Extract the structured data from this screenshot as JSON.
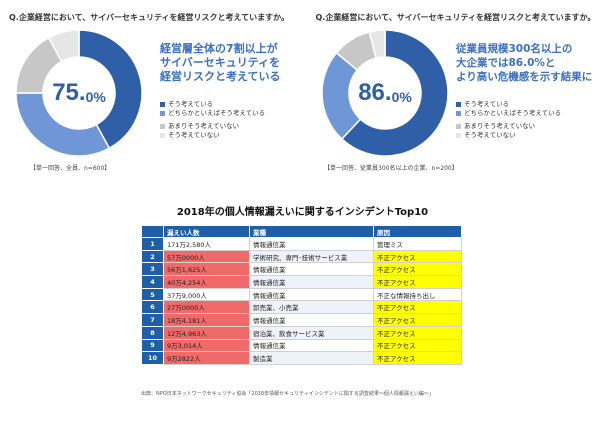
{
  "colors": {
    "primary": "#2f5fa6",
    "secondary": "#6f96d6",
    "tertiary": "#c7c7c7",
    "quaternary": "#e6e6e6",
    "table_header": "#1f5fa8",
    "highlight_red": "#f06a6a",
    "highlight_yellow": "#ffff00"
  },
  "chart_data": [
    {
      "type": "pie",
      "title": "Q.企業経営において、サイバーセキュリティを経営リスクと考えていますか。",
      "center_label": {
        "number": "75.",
        "unit": "0%"
      },
      "callout": [
        "経営層全体の7割以上が",
        "サイバーセキュリティを",
        "経営リスクと考えている"
      ],
      "categories": [
        "そう考えている",
        "どちらかといえばそう考えている",
        "あまりそう考えていない",
        "そう考えていない"
      ],
      "values": [
        42,
        33,
        17,
        8
      ],
      "highlighted_share_percent": 75.0,
      "footnote": "【単一回答、全員、n=600】"
    },
    {
      "type": "pie",
      "title": "Q.企業経営において、サイバーセキュリティを経営リスクと考えていますか。",
      "center_label": {
        "number": "86.",
        "unit": "0%"
      },
      "callout": [
        "従業員規模300名以上の",
        "大企業では86.0%と",
        "より高い危機感を示す結果に"
      ],
      "categories": [
        "そう考えている",
        "どちらかといえばそう考えている",
        "あまりそう考えていない",
        "そう考えていない"
      ],
      "values": [
        62,
        24,
        10,
        4
      ],
      "highlighted_share_percent": 86.0,
      "footnote": "【単一回答、従業員300名以上の企業、n=200】"
    },
    {
      "type": "table",
      "title": "2018年の個人情報漏えいに関するインシデントTop10",
      "columns": [
        "",
        "漏えい人数",
        "業種",
        "原因"
      ],
      "rows": [
        [
          "1",
          "171万2,580人",
          "情報通信業",
          "管理ミス"
        ],
        [
          "2",
          "57万0000人",
          "学術研究、専門･技術サービス業",
          "不正アクセス"
        ],
        [
          "3",
          "56万1,625人",
          "情報通信業",
          "不正アクセス"
        ],
        [
          "4",
          "40万4,254人",
          "情報通信業",
          "不正アクセス"
        ],
        [
          "5",
          "37万9,000人",
          "情報通信業",
          "不正な情報持ち出し"
        ],
        [
          "6",
          "27万0000人",
          "卸売業、小売業",
          "不正アクセス"
        ],
        [
          "7",
          "18万4,181人",
          "情報通信業",
          "不正アクセス"
        ],
        [
          "8",
          "12万4,963人",
          "宿泊業、飲食サービス業",
          "不正アクセス"
        ],
        [
          "9",
          "9万3,014人",
          "情報通信業",
          "不正アクセス"
        ],
        [
          "10",
          "9万2822人",
          "製造業",
          "不正アクセス"
        ]
      ],
      "red_rows": [
        2,
        3,
        4,
        6,
        7,
        8,
        9,
        10
      ],
      "yellow_rows": [
        2,
        3,
        4,
        6,
        7,
        8,
        9,
        10
      ],
      "source": "出典：NPO日本ネットワークセキュリティ協会「2018年情報セキュリティインシデントに関する調査結果〜個人情報漏えい編〜」"
    }
  ]
}
